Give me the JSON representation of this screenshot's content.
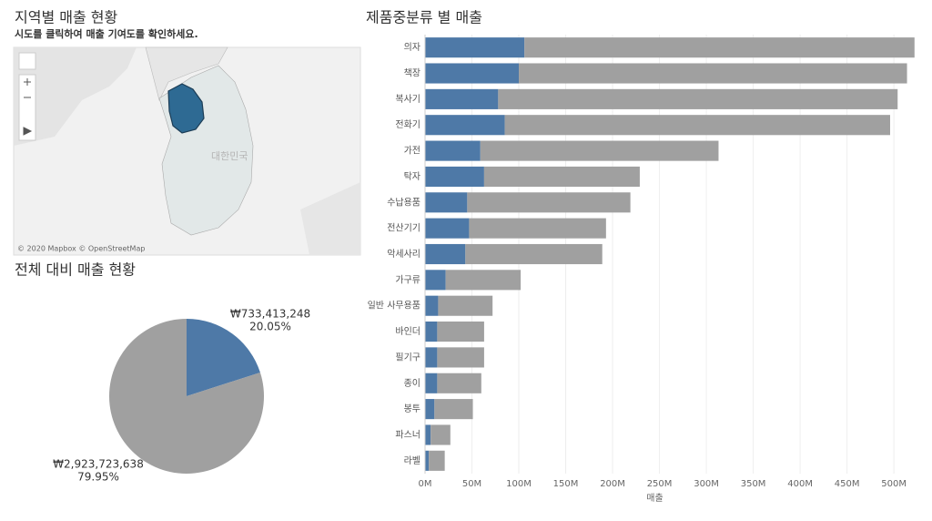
{
  "map": {
    "title": "지역별 매출 현황",
    "subtitle": "시도를 클릭하여 매출 기여도를 확인하세요.",
    "place_label": "대한민국",
    "attribution": "© 2020 Mapbox © OpenStreetMap"
  },
  "chart_data": [
    {
      "type": "pie",
      "title": "전체 대비 매출 현황",
      "categories": [
        null,
        null
      ],
      "values": [
        20.05,
        79.95
      ],
      "value_labels": [
        "20.05%",
        "79.95%"
      ],
      "amount_labels": [
        "₩733,413,248",
        "₩2,923,723,638"
      ],
      "colors": [
        "#4e79a7",
        "#a0a0a0"
      ]
    },
    {
      "type": "stacked-barh",
      "title": "제품중분류 별 매출",
      "x_label": "매출",
      "categories": [
        "의자",
        "책장",
        "복사기",
        "전화기",
        "가전",
        "탁자",
        "수납용품",
        "전산기기",
        "악세사리",
        "가구류",
        "일반 사무용품",
        "바인더",
        "필기구",
        "종이",
        "봉투",
        "파스너",
        "라벨"
      ],
      "series": [
        {
          "color": "#4e79a7",
          "values": [
            106000000,
            100000000,
            78000000,
            85000000,
            59000000,
            63000000,
            45000000,
            47000000,
            43000000,
            22000000,
            14000000,
            13000000,
            13000000,
            13000000,
            10000000,
            6000000,
            4000000
          ]
        },
        {
          "color": "#a0a0a0",
          "values": [
            416000000,
            414000000,
            426000000,
            411000000,
            254000000,
            166000000,
            174000000,
            146000000,
            146000000,
            80000000,
            58000000,
            50000000,
            50000000,
            47000000,
            41000000,
            21000000,
            17000000
          ]
        }
      ],
      "xlim": [
        0,
        529000000
      ],
      "xticks": [
        {
          "value": 0,
          "label": "0M"
        },
        {
          "value": 50000000,
          "label": "50M"
        },
        {
          "value": 100000000,
          "label": "100M"
        },
        {
          "value": 150000000,
          "label": "150M"
        },
        {
          "value": 200000000,
          "label": "200M"
        },
        {
          "value": 250000000,
          "label": "250M"
        },
        {
          "value": 300000000,
          "label": "300M"
        },
        {
          "value": 350000000,
          "label": "350M"
        },
        {
          "value": 400000000,
          "label": "400M"
        },
        {
          "value": 450000000,
          "label": "450M"
        },
        {
          "value": 500000000,
          "label": "500M"
        }
      ],
      "grid": true
    }
  ]
}
